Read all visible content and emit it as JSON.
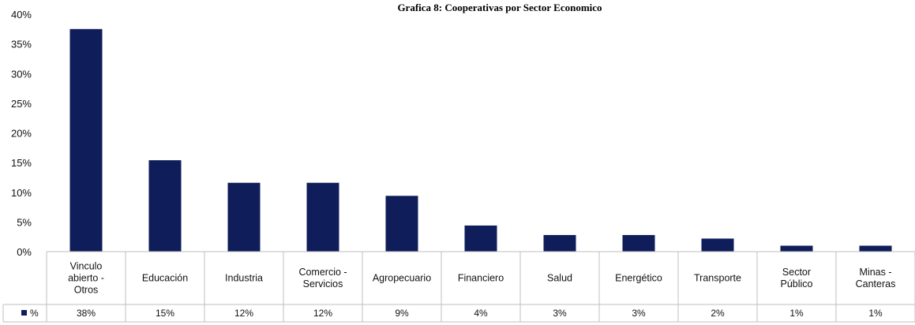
{
  "chart_data": {
    "type": "bar",
    "title": "Grafica 8: Cooperativas por Sector Economico",
    "categories": [
      [
        "Vinculo",
        "abierto -",
        "Otros"
      ],
      [
        "Educación"
      ],
      [
        "Industria"
      ],
      [
        "Comercio -",
        "Servicios"
      ],
      [
        "Agropecuario"
      ],
      [
        "Financiero"
      ],
      [
        "Salud"
      ],
      [
        "Energético"
      ],
      [
        "Transporte"
      ],
      [
        "Sector",
        "Público"
      ],
      [
        "Minas -",
        "Canteras"
      ]
    ],
    "series": [
      {
        "name": "%",
        "values": [
          37.5,
          15.4,
          11.6,
          11.6,
          9.4,
          4.4,
          2.8,
          2.8,
          2.2,
          1.0,
          1.0
        ],
        "labels": [
          "38%",
          "15%",
          "12%",
          "12%",
          "9%",
          "4%",
          "3%",
          "3%",
          "2%",
          "1%",
          "1%"
        ]
      }
    ],
    "yticks": [
      "0%",
      "5%",
      "10%",
      "15%",
      "20%",
      "25%",
      "30%",
      "35%",
      "40%"
    ],
    "ylim": [
      0,
      40
    ],
    "grid": false,
    "legend": "data-table-left",
    "bar_color": "#0f1e5a"
  }
}
